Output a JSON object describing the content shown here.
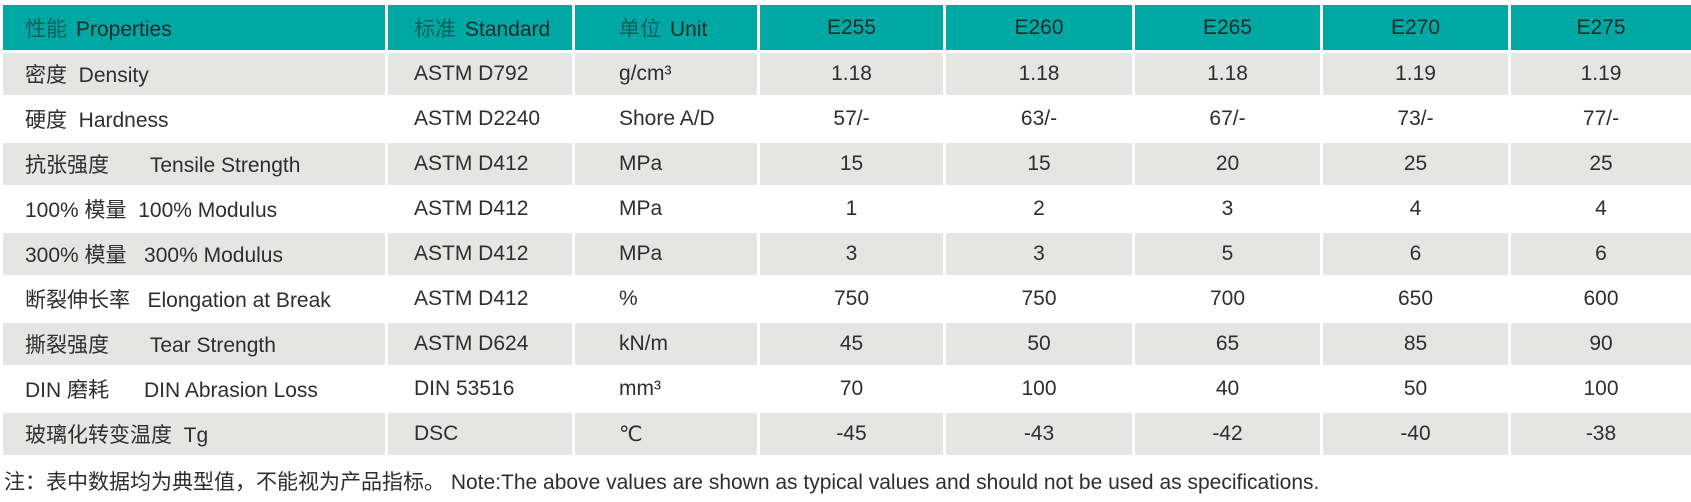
{
  "table": {
    "columns": [
      {
        "zh": "性能",
        "en": "Properties"
      },
      {
        "zh": "标准",
        "en": "Standard"
      },
      {
        "zh": "单位",
        "en": "Unit"
      },
      {
        "zh": "",
        "en": "E255"
      },
      {
        "zh": "",
        "en": "E260"
      },
      {
        "zh": "",
        "en": "E265"
      },
      {
        "zh": "",
        "en": "E270"
      },
      {
        "zh": "",
        "en": "E275"
      }
    ],
    "rows": [
      {
        "property": "密度  Density",
        "standard": "ASTM D792",
        "unit": "g/cm³",
        "values": [
          "1.18",
          "1.18",
          "1.18",
          "1.19",
          "1.19"
        ]
      },
      {
        "property": "硬度  Hardness",
        "standard": "ASTM D2240",
        "unit": "Shore A/D",
        "values": [
          "57/-",
          "63/-",
          "67/-",
          "73/-",
          "77/-"
        ]
      },
      {
        "property": "抗张强度       Tensile Strength",
        "standard": "ASTM D412",
        "unit": "MPa",
        "values": [
          "15",
          "15",
          "20",
          "25",
          "25"
        ]
      },
      {
        "property": "100% 模量  100% Modulus",
        "standard": "ASTM D412",
        "unit": "MPa",
        "values": [
          "1",
          "2",
          "3",
          "4",
          "4"
        ]
      },
      {
        "property": "300% 模量   300% Modulus",
        "standard": "ASTM D412",
        "unit": "MPa",
        "values": [
          "3",
          "3",
          "5",
          "6",
          "6"
        ]
      },
      {
        "property": "断裂伸长率   Elongation at Break",
        "standard": "ASTM D412",
        "unit": "%",
        "values": [
          "750",
          "750",
          "700",
          "650",
          "600"
        ]
      },
      {
        "property": "撕裂强度       Tear Strength",
        "standard": "ASTM D624",
        "unit": "kN/m",
        "values": [
          "45",
          "50",
          "65",
          "85",
          "90"
        ]
      },
      {
        "property": "DIN 磨耗      DIN Abrasion Loss",
        "standard": "DIN 53516",
        "unit": "mm³",
        "values": [
          "70",
          "100",
          "40",
          "50",
          "100"
        ]
      },
      {
        "property": "玻璃化转变温度  Tg",
        "standard": "DSC",
        "unit": "℃",
        "values": [
          "-45",
          "-43",
          "-42",
          "-40",
          "-38"
        ]
      }
    ]
  },
  "note": "注：表中数据均为典型值，不能视为产品指标。 Note:The above values are shown as typical values and should not be used as specifications.",
  "colors": {
    "header_bg": "#00a8a4",
    "row_alt_bg": "#e5e5e4",
    "row_bg": "#ffffff",
    "text": "#2e2e2e"
  }
}
